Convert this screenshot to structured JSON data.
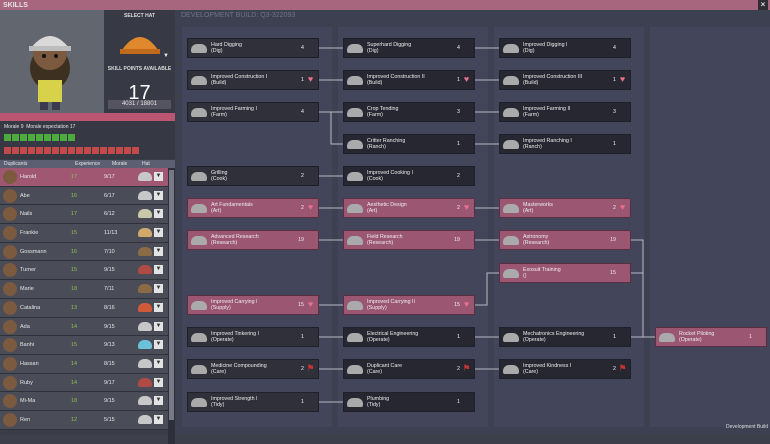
{
  "title": "SKILLS",
  "close_label": "×",
  "hat_panel": {
    "select_hat": "SELECT HAT",
    "skill_points_label": "SKILL POINTS AVAILABLE",
    "skill_points": "17",
    "experience": "4031 / 18801"
  },
  "morale": {
    "label": "Morale",
    "value": "9",
    "expectation_label": "Morale expectation",
    "expectation": "17"
  },
  "columns": {
    "duplicants": "Duplicants",
    "experience": "Experience",
    "morale": "Morale",
    "hat": "Hat"
  },
  "duplicants": [
    {
      "name": "Harold",
      "exp": "17",
      "morale": "9/17",
      "hat": "#c7c7c7",
      "sel": true
    },
    {
      "name": "Abe",
      "exp": "16",
      "morale": "6/17",
      "hat": "#c7c7c7"
    },
    {
      "name": "Nails",
      "exp": "17",
      "morale": "6/12",
      "hat": "#c8c8a8"
    },
    {
      "name": "Frankie",
      "exp": "15",
      "morale": "11/13",
      "hat": "#cfa96a"
    },
    {
      "name": "Gossmann",
      "exp": "16",
      "morale": "7/10",
      "hat": "#8b6b45"
    },
    {
      "name": "Turner",
      "exp": "15",
      "morale": "9/15",
      "hat": "#b04a45"
    },
    {
      "name": "Marie",
      "exp": "18",
      "morale": "7/11",
      "hat": "#8b6b45"
    },
    {
      "name": "Catalina",
      "exp": "13",
      "morale": "8/16",
      "hat": "#d05a3a"
    },
    {
      "name": "Ada",
      "exp": "14",
      "morale": "9/15",
      "hat": "#c7c7c7"
    },
    {
      "name": "Banhi",
      "exp": "15",
      "morale": "9/13",
      "hat": "#6cc0d8"
    },
    {
      "name": "Hassan",
      "exp": "14",
      "morale": "8/15",
      "hat": "#c7c7c7"
    },
    {
      "name": "Ruby",
      "exp": "14",
      "morale": "9/17",
      "hat": "#b04a45"
    },
    {
      "name": "Mi-Ma",
      "exp": "18",
      "morale": "9/15",
      "hat": "#c7c7c7"
    },
    {
      "name": "Ren",
      "exp": "12",
      "morale": "5/15",
      "hat": "#c7c7c7"
    }
  ],
  "build": "DEVELOPMENT BUILD: Q3-322093",
  "dev_tag": "Development Build",
  "nodes": [
    {
      "id": "n1",
      "t": "Hard Digging",
      "s": "(Dig)",
      "c": "4",
      "ic": "",
      "st": "",
      "col": 0,
      "row": 0
    },
    {
      "id": "n2",
      "t": "Superhard Digging",
      "s": "(Dig)",
      "c": "4",
      "ic": "",
      "st": "d",
      "col": 1,
      "row": 0
    },
    {
      "id": "n3",
      "t": "Improved Digging I",
      "s": "(Dig)",
      "c": "4",
      "ic": "",
      "st": "d",
      "col": 2,
      "row": 0
    },
    {
      "id": "n4",
      "t": "Improved Construction I",
      "s": "(Build)",
      "c": "1",
      "ic": "heart",
      "st": "",
      "col": 0,
      "row": 1
    },
    {
      "id": "n5",
      "t": "Improved Construction II",
      "s": "(Build)",
      "c": "1",
      "ic": "heart",
      "st": "d",
      "col": 1,
      "row": 1
    },
    {
      "id": "n6",
      "t": "Improved Construction III",
      "s": "(Build)",
      "c": "1",
      "ic": "heart",
      "st": "d",
      "col": 2,
      "row": 1
    },
    {
      "id": "n7",
      "t": "Improved Farming I",
      "s": "(Farm)",
      "c": "4",
      "ic": "",
      "st": "",
      "col": 0,
      "row": 2
    },
    {
      "id": "n8",
      "t": "Crop Tending",
      "s": "(Farm)",
      "c": "3",
      "ic": "",
      "st": "d",
      "col": 1,
      "row": 2
    },
    {
      "id": "n9",
      "t": "Improved Farming II",
      "s": "(Farm)",
      "c": "3",
      "ic": "",
      "st": "d",
      "col": 2,
      "row": 2
    },
    {
      "id": "n10",
      "t": "Critter Ranching",
      "s": "(Ranch)",
      "c": "1",
      "ic": "",
      "st": "d",
      "col": 1,
      "row": 3
    },
    {
      "id": "n11",
      "t": "Improved Ranching I",
      "s": "(Ranch)",
      "c": "1",
      "ic": "",
      "st": "d",
      "col": 2,
      "row": 3
    },
    {
      "id": "n12",
      "t": "Grilling",
      "s": "(Cook)",
      "c": "2",
      "ic": "",
      "st": "",
      "col": 0,
      "row": 4
    },
    {
      "id": "n13",
      "t": "Improved Cooking I",
      "s": "(Cook)",
      "c": "2",
      "ic": "",
      "st": "d",
      "col": 1,
      "row": 4
    },
    {
      "id": "n14",
      "t": "Art Fundamentals",
      "s": "(Art)",
      "c": "2",
      "ic": "heart",
      "st": "m",
      "col": 0,
      "row": 5
    },
    {
      "id": "n15",
      "t": "Aesthetic Design",
      "s": "(Art)",
      "c": "2",
      "ic": "heart",
      "st": "m",
      "col": 1,
      "row": 5
    },
    {
      "id": "n16",
      "t": "Masterworks",
      "s": "(Art)",
      "c": "2",
      "ic": "heart",
      "st": "m",
      "col": 2,
      "row": 5
    },
    {
      "id": "n17",
      "t": "Advanced Research",
      "s": "(Research)",
      "c": "19",
      "ic": "",
      "st": "m",
      "col": 0,
      "row": 6
    },
    {
      "id": "n18",
      "t": "Field Research",
      "s": "(Research)",
      "c": "19",
      "ic": "",
      "st": "m",
      "col": 1,
      "row": 6
    },
    {
      "id": "n19",
      "t": "Astronomy",
      "s": "(Research)",
      "c": "19",
      "ic": "",
      "st": "m",
      "col": 2,
      "row": 6
    },
    {
      "id": "n20",
      "t": "Exosuit Training",
      "s": "()",
      "c": "15",
      "ic": "",
      "st": "m",
      "col": 2,
      "row": 7
    },
    {
      "id": "n21",
      "t": "Improved Carrying I",
      "s": "(Supply)",
      "c": "15",
      "ic": "heart",
      "st": "m",
      "col": 0,
      "row": 8
    },
    {
      "id": "n22",
      "t": "Improved Carrying II",
      "s": "(Supply)",
      "c": "15",
      "ic": "heart",
      "st": "m",
      "col": 1,
      "row": 8
    },
    {
      "id": "n23",
      "t": "Improved Tinkering I",
      "s": "(Operate)",
      "c": "1",
      "ic": "",
      "st": "",
      "col": 0,
      "row": 9
    },
    {
      "id": "n24",
      "t": "Electrical Engineering",
      "s": "(Operate)",
      "c": "1",
      "ic": "",
      "st": "d",
      "col": 1,
      "row": 9
    },
    {
      "id": "n25",
      "t": "Mechatronics Engineering",
      "s": "(Operate)",
      "c": "1",
      "ic": "",
      "st": "d",
      "col": 2,
      "row": 9
    },
    {
      "id": "n26",
      "t": "Rocket Piloting",
      "s": "(Operate)",
      "c": "1",
      "ic": "",
      "st": "m",
      "col": 3,
      "row": 9
    },
    {
      "id": "n27",
      "t": "Medicine Compounding",
      "s": "(Care)",
      "c": "2",
      "ic": "flag",
      "st": "",
      "col": 0,
      "row": 10
    },
    {
      "id": "n28",
      "t": "Duplicant Care",
      "s": "(Care)",
      "c": "2",
      "ic": "flag",
      "st": "d",
      "col": 1,
      "row": 10
    },
    {
      "id": "n29",
      "t": "Improved Kindness I",
      "s": "(Care)",
      "c": "2",
      "ic": "flag",
      "st": "d",
      "col": 2,
      "row": 10
    },
    {
      "id": "n30",
      "t": "Improved Strength I",
      "s": "(Tidy)",
      "c": "1",
      "ic": "",
      "st": "",
      "col": 0,
      "row": 11
    },
    {
      "id": "n31",
      "t": "Plumbing",
      "s": "(Tidy)",
      "c": "1",
      "ic": "",
      "st": "d",
      "col": 1,
      "row": 11
    }
  ]
}
